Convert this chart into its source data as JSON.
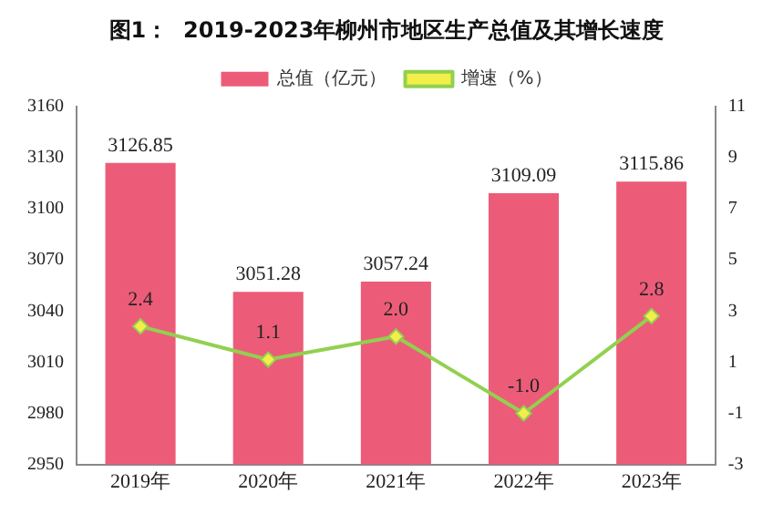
{
  "chart_data": {
    "type": "bar",
    "title": "图1：  2019-2023年柳州市地区生产总值及其增长速度",
    "categories": [
      "2019年",
      "2020年",
      "2021年",
      "2022年",
      "2023年"
    ],
    "series": [
      {
        "name": "总值（亿元）",
        "color": "#ec5c78",
        "values": [
          3126.85,
          3051.28,
          3057.24,
          3109.09,
          3115.86
        ],
        "value_labels": [
          "3126.85",
          "3051.28",
          "3057.24",
          "3109.09",
          "3115.86"
        ]
      },
      {
        "name": "增速（%）",
        "type": "line",
        "axis": "y2",
        "color": "#92d050",
        "values": [
          2.4,
          1.1,
          2.0,
          -1.0,
          2.8
        ],
        "value_labels": [
          "2.4",
          "1.1",
          "2.0",
          "-1.0",
          "2.8"
        ]
      }
    ],
    "ylim": [
      2950,
      3160
    ],
    "yticks": [
      2950,
      2980,
      3010,
      3040,
      3070,
      3100,
      3130,
      3160
    ],
    "y2lim": [
      -3,
      11
    ],
    "y2ticks": [
      -3,
      -1,
      1,
      3,
      5,
      7,
      9,
      11
    ],
    "legend": "top",
    "marker": "diamond",
    "line_style": "solid"
  }
}
